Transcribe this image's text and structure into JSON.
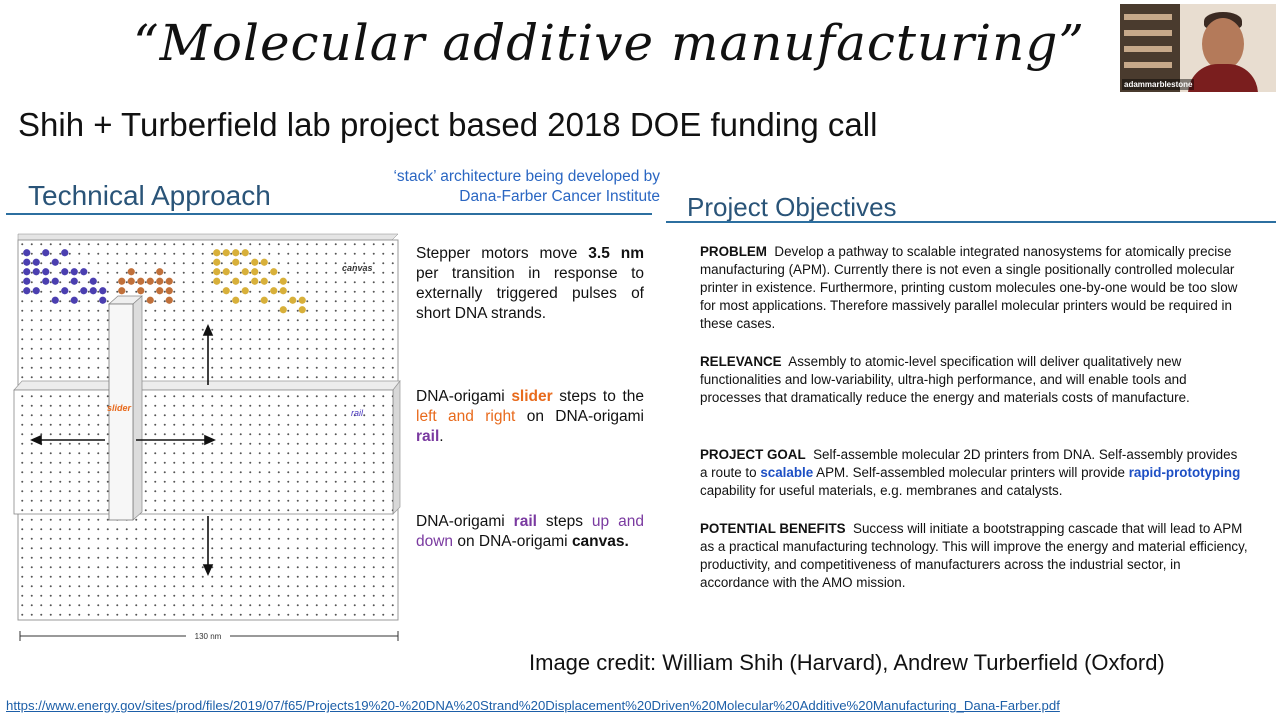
{
  "slide": {
    "title": "“Molecular additive manufacturing”",
    "subtitle": "Shih + Turberfield lab project based 2018 DOE funding call"
  },
  "video": {
    "participant_name": "adammarblestone"
  },
  "technical": {
    "heading": "Technical Approach",
    "note": "‘stack’ architecture being developed by Dana-Farber Cancer Institute",
    "diagram": {
      "canvas_label": "canvas",
      "slider_label": "slider",
      "rail_label": "rail",
      "scale_label": "130 nm"
    },
    "step1": {
      "t1": "Stepper motors move ",
      "b1": "3.5 nm",
      "t2": " per transition in response to externally triggered pulses of short DNA strands."
    },
    "step2": {
      "t1": "DNA-origami ",
      "slider": "slider",
      "t2": " steps to the ",
      "leftright": "left and right",
      "t3": " on DNA-origami ",
      "rail": "rail",
      "t4": "."
    },
    "step3": {
      "t1": "DNA-origami ",
      "rail": "rail",
      "t2": " steps ",
      "updown": "up and down",
      "t3": " on DNA-origami ",
      "canvas": "canvas."
    }
  },
  "objectives": {
    "heading": "Project Objectives",
    "problem": {
      "label": "PROBLEM",
      "text": "  Develop a pathway to scalable integrated nanosystems for atomically precise manufacturing (APM). Currently there is not even a single positionally controlled molecular printer in existence. Furthermore, printing custom molecules one-by-one would be too slow for most applications. Therefore massively parallel molecular printers would be required in these cases."
    },
    "relevance": {
      "label": "RELEVANCE",
      "text": "  Assembly to atomic-level specification will deliver qualitatively new functionalities and low-variability, ultra-high performance, and will enable tools and processes that dramatically reduce the energy and materials costs of manufacture."
    },
    "goal": {
      "label": "PROJECT GOAL",
      "t1": "  Self-assemble molecular 2D printers from DNA. Self-assembly provides a route to ",
      "scalable": "scalable",
      "t2": " APM. Self-assembled molecular printers will provide ",
      "rapid": "rapid-prototyping",
      "t3": " capability for useful materials, e.g. membranes and catalysts."
    },
    "benefits": {
      "label": "POTENTIAL BENEFITS",
      "text": "  Success will initiate a bootstrapping cascade that will lead to APM as a practical manufacturing technology. This will improve the energy and material efficiency, productivity, and competitiveness of manufacturers across the industrial sector, in accordance with the AMO mission."
    }
  },
  "credit": "Image credit: William Shih (Harvard), Andrew Turberfield (Oxford)",
  "link": "https://www.energy.gov/sites/prod/files/2019/07/f65/Projects19%20-%20DNA%20Strand%20Displacement%20Driven%20Molecular%20Additive%20Manufacturing_Dana-Farber.pdf",
  "colors": {
    "accent_blue": "#2a5478",
    "rule_blue": "#2c6fa0",
    "slider_orange": "#e86a1c",
    "rail_purple": "#7a3aa0",
    "link_blue": "#1d5fa8"
  }
}
